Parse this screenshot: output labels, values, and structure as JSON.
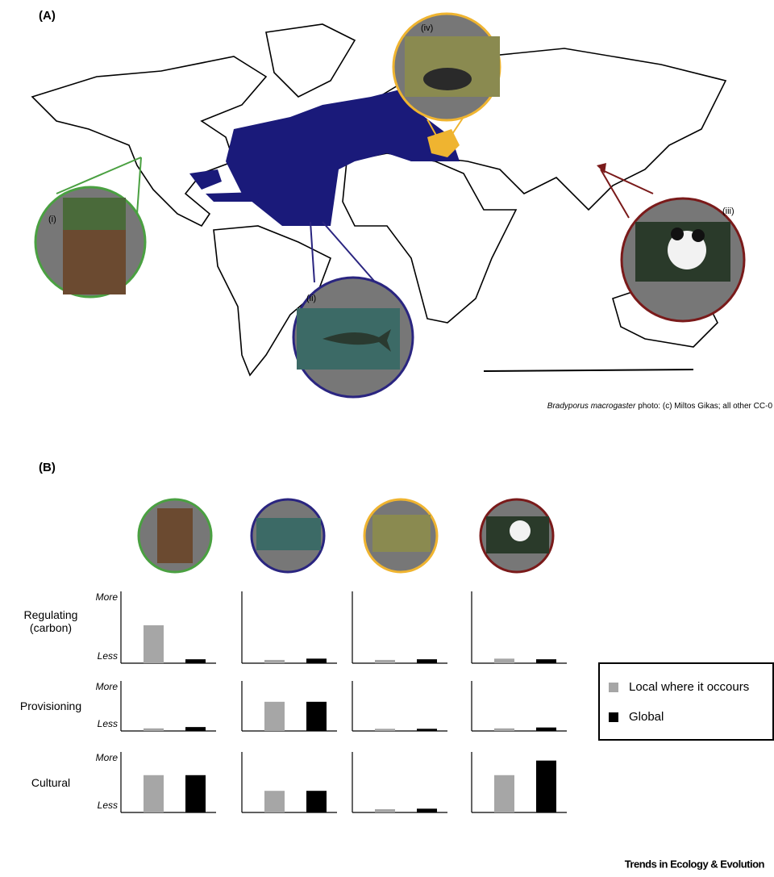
{
  "panel_a": {
    "label": "(A)",
    "insets": [
      "(i)",
      "(ii)",
      "(iii)",
      "(iv)"
    ],
    "credit_species": "Bradyporus macrogaster",
    "credit": "photo: (c) Miltos Gikas; all other CC-0"
  },
  "panel_b": {
    "label": "(B)"
  },
  "chart_data": {
    "type": "bar",
    "rows": [
      "Regulating (carbon)",
      "Provisioning",
      "Cultural"
    ],
    "ylim": [
      0,
      1
    ],
    "yticks": [
      {
        "value": 0,
        "label": "Less"
      },
      {
        "value": 1,
        "label": "More"
      }
    ],
    "series": [
      {
        "name": "Local where it occours",
        "color": "#a6a6a6",
        "values": [
          [
            0.58,
            0.05,
            0.05,
            0.07
          ],
          [
            0.06,
            0.67,
            0.05,
            0.06
          ],
          [
            0.69,
            0.4,
            0.06,
            0.69
          ]
        ]
      },
      {
        "name": "Global",
        "color": "#000000",
        "values": [
          [
            0.06,
            0.07,
            0.06,
            0.06
          ],
          [
            0.09,
            0.67,
            0.05,
            0.08
          ],
          [
            0.69,
            0.4,
            0.07,
            0.96
          ]
        ]
      }
    ],
    "legend": "right"
  },
  "footer": "Trends in Ecology & Evolution"
}
